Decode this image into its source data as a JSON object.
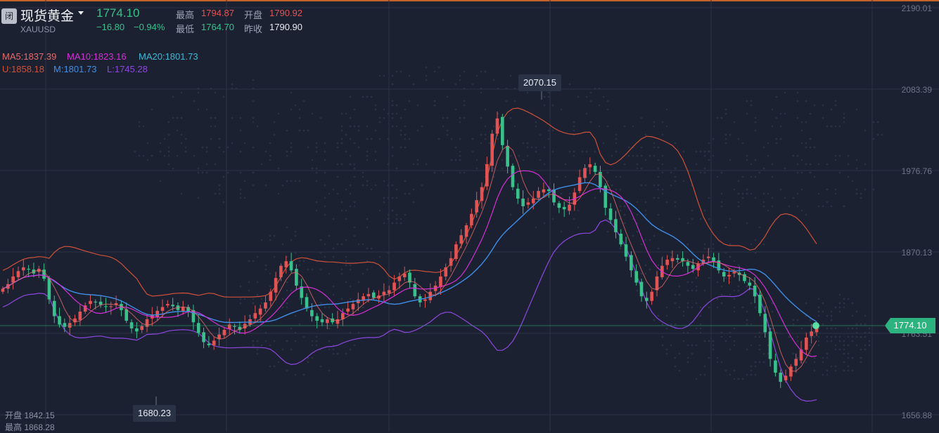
{
  "header": {
    "closed_badge": "闭",
    "title": "现货黄金",
    "symbol": "XAUUSD",
    "price": "1774.10",
    "change": "−16.80",
    "change_pct": "−0.94%",
    "high_label": "最高",
    "high_value": "1794.87",
    "open_label": "开盘",
    "open_value": "1790.92",
    "low_label": "最低",
    "low_value": "1764.70",
    "prev_close_label": "昨收",
    "prev_close_value": "1790.90"
  },
  "indicators": {
    "ma5": "MA5:1837.39",
    "ma10": "MA10:1823.16",
    "ma20": "MA20:1801.73",
    "boll_u": "U:1858.18",
    "boll_m": "M:1801.73",
    "boll_l": "L:1745.28"
  },
  "axis": {
    "labels": [
      "2190.01",
      "2083.39",
      "1976.76",
      "1870.13",
      "1763.51",
      "1656.88"
    ]
  },
  "callouts": {
    "high": "2070.15",
    "low": "1680.23",
    "current_price_tag": "1774.10"
  },
  "crosshair_ohlc": {
    "open_line": "开盘 1842.15",
    "high_line": "最高 1868.28"
  },
  "colors": {
    "up": "#e25454",
    "down": "#39c18c",
    "ma5": "#e86a6a",
    "ma10": "#d62fd6",
    "ma20": "#3fb8d6",
    "boll_u": "#cf5138",
    "boll_m": "#3f8ee8",
    "boll_l": "#8e47e0"
  },
  "chart_data": {
    "type": "candlestick",
    "y_range": [
      1656.88,
      2190.01
    ],
    "closes": [
      1822,
      1828,
      1838,
      1845,
      1850,
      1847,
      1842,
      1848,
      1835,
      1808,
      1786,
      1775,
      1772,
      1777,
      1783,
      1792,
      1800,
      1806,
      1804,
      1801,
      1798,
      1799,
      1803,
      1794,
      1780,
      1770,
      1766,
      1773,
      1782,
      1787,
      1793,
      1798,
      1802,
      1799,
      1794,
      1798,
      1792,
      1778,
      1764,
      1752,
      1748,
      1754,
      1762,
      1768,
      1775,
      1772,
      1768,
      1776,
      1782,
      1790,
      1796,
      1804,
      1818,
      1836,
      1852,
      1858,
      1846,
      1826,
      1810,
      1796,
      1786,
      1780,
      1778,
      1782,
      1778,
      1782,
      1790,
      1796,
      1802,
      1808,
      1812,
      1815,
      1810,
      1813,
      1818,
      1820,
      1830,
      1838,
      1842,
      1830,
      1812,
      1804,
      1808,
      1818,
      1826,
      1838,
      1850,
      1862,
      1880,
      1892,
      1905,
      1920,
      1938,
      1955,
      1985,
      2025,
      2045,
      2010,
      1982,
      1955,
      1940,
      1930,
      1935,
      1940,
      1950,
      1952,
      1950,
      1935,
      1928,
      1926,
      1932,
      1948,
      1968,
      1980,
      1985,
      1975,
      1955,
      1928,
      1912,
      1896,
      1880,
      1864,
      1846,
      1830,
      1812,
      1806,
      1818,
      1838,
      1852,
      1860,
      1862,
      1860,
      1858,
      1852,
      1848,
      1855,
      1860,
      1864,
      1858,
      1846,
      1838,
      1840,
      1844,
      1840,
      1832,
      1826,
      1812,
      1790,
      1765,
      1730,
      1712,
      1700,
      1708,
      1720,
      1730,
      1742,
      1758,
      1766,
      1774
    ]
  }
}
